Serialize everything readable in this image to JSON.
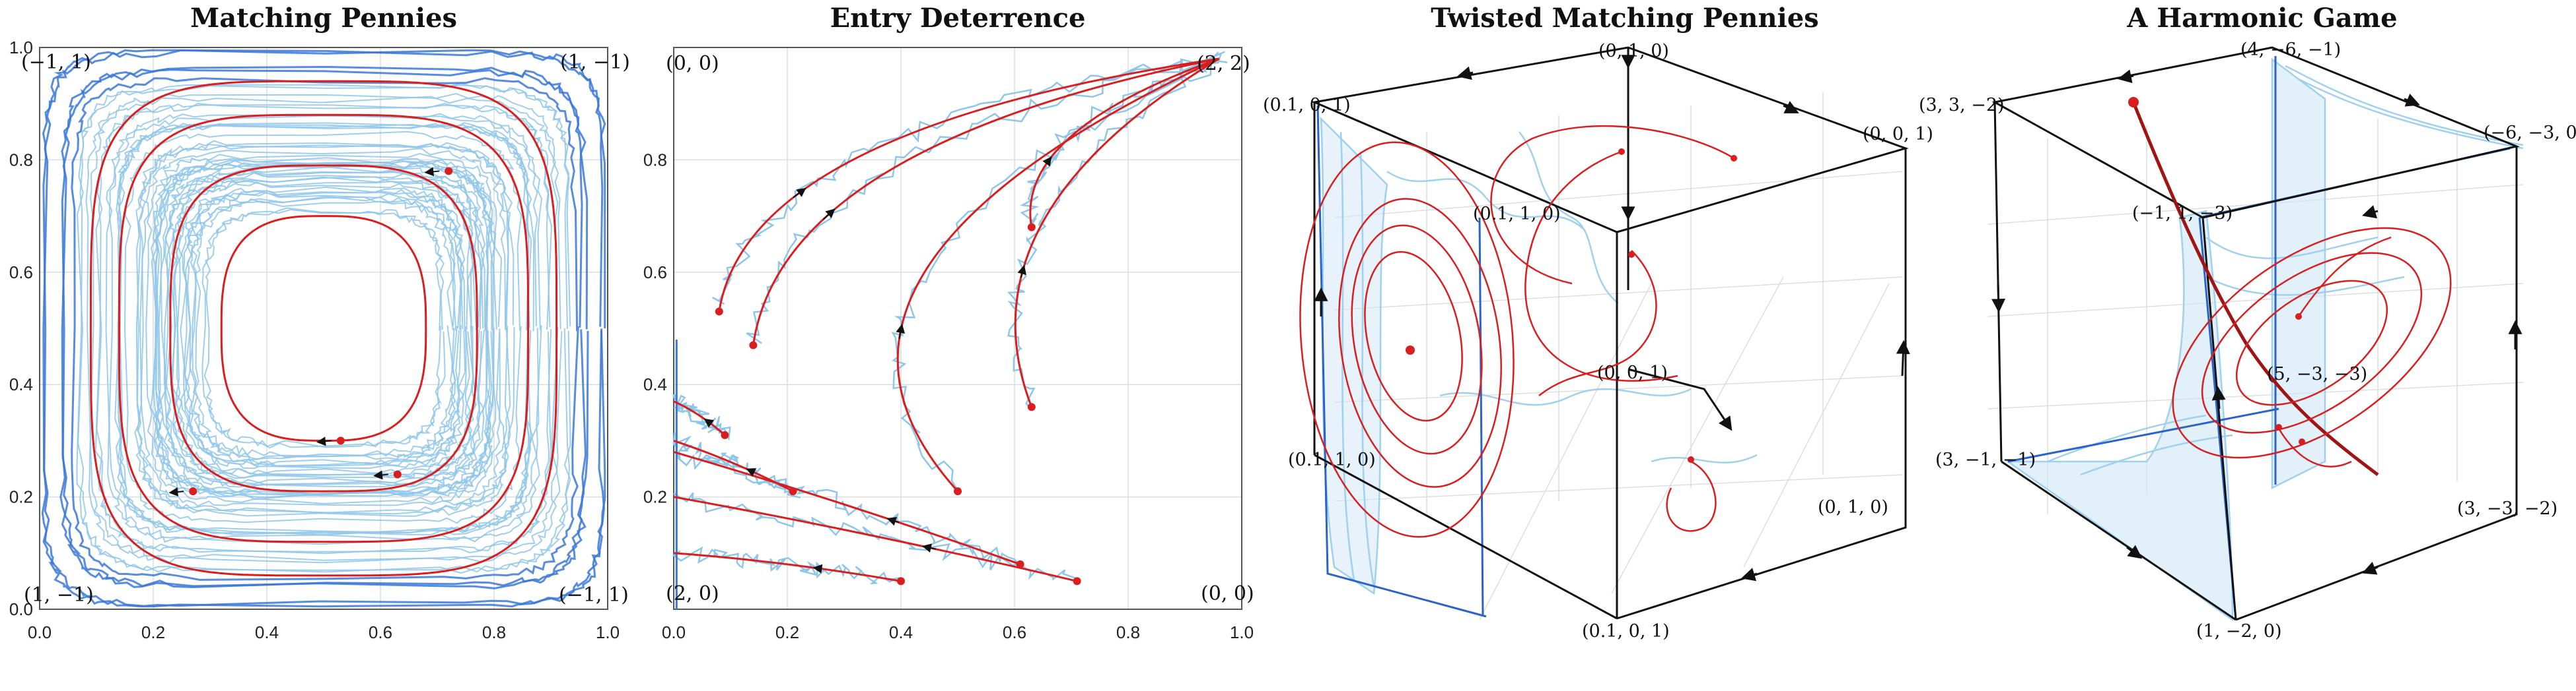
{
  "colors": {
    "red": "#d81e1e",
    "blue": "#3a78d8",
    "lightblue": "#8ec6ea",
    "arrow": "#111111",
    "grid": "#dddddd"
  },
  "chart_data": [
    {
      "type": "line",
      "title": "Matching Pennies",
      "xlim": [
        0,
        1
      ],
      "ylim": [
        0,
        1
      ],
      "xticks": [
        "0.0",
        "0.2",
        "0.4",
        "0.6",
        "0.8",
        "1.0"
      ],
      "yticks": [
        "0.0",
        "0.2",
        "0.4",
        "0.6",
        "0.8",
        "1.0"
      ],
      "corner_labels": {
        "top_left": "(−1, 1)",
        "top_right": "(1, −1)",
        "bottom_left": "(1, −1)",
        "bottom_right": "(−1, 1)"
      },
      "grid": true,
      "series": [
        {
          "center": [
            0.5,
            0.5
          ],
          "radius_x": 0.18,
          "radius_y": 0.2,
          "start": [
            0.53,
            0.3
          ]
        },
        {
          "center": [
            0.5,
            0.5
          ],
          "radius_x": 0.27,
          "radius_y": 0.29,
          "start": [
            0.63,
            0.24
          ]
        },
        {
          "center": [
            0.5,
            0.5
          ],
          "radius_x": 0.36,
          "radius_y": 0.38,
          "start": [
            0.72,
            0.78
          ]
        },
        {
          "center": [
            0.5,
            0.5
          ],
          "radius_x": 0.41,
          "radius_y": 0.44,
          "start": [
            0.27,
            0.21
          ]
        }
      ]
    },
    {
      "type": "line",
      "title": "Entry Deterrence",
      "xlim": [
        0,
        1
      ],
      "ylim": [
        0,
        1
      ],
      "xticks": [
        "0.0",
        "0.2",
        "0.4",
        "0.6",
        "0.8",
        "1.0"
      ],
      "yticks": [
        "0.2",
        "0.4",
        "0.6",
        "0.8"
      ],
      "corner_labels": {
        "top_left": "(0, 0)",
        "top_right": "(2, 2)",
        "bottom_left": "(2, 0)",
        "bottom_right": "(0, 0)"
      },
      "grid": true,
      "series": [
        {
          "start": [
            0.63,
            0.36
          ],
          "end": [
            0.96,
            0.98
          ]
        },
        {
          "start": [
            0.5,
            0.21
          ],
          "end": [
            0.96,
            0.98
          ]
        },
        {
          "start": [
            0.14,
            0.47
          ],
          "end": [
            0.96,
            0.98
          ]
        },
        {
          "start": [
            0.08,
            0.53
          ],
          "end": [
            0.96,
            0.98
          ]
        },
        {
          "start": [
            0.63,
            0.68
          ],
          "end": [
            0.96,
            0.98
          ]
        },
        {
          "start": [
            0.4,
            0.05
          ],
          "end": [
            0.0,
            0.1
          ]
        },
        {
          "start": [
            0.71,
            0.05
          ],
          "end": [
            0.0,
            0.2
          ]
        },
        {
          "start": [
            0.61,
            0.08
          ],
          "end": [
            0.0,
            0.28
          ]
        },
        {
          "start": [
            0.21,
            0.21
          ],
          "end": [
            0.0,
            0.3
          ]
        },
        {
          "start": [
            0.09,
            0.31
          ],
          "end": [
            0.0,
            0.37
          ]
        }
      ]
    },
    {
      "type": "line",
      "title": "Twisted Matching Pennies",
      "vertex_labels": [
        "(0, 1, 0)",
        "(0, 0, 1)",
        "(0.1, 0, 1)",
        "(0.1, 1, 0)",
        "(0, 0, 1)",
        "(0.1, 1, 0)",
        "(0, 1, 0)",
        "(0.1, 0, 1)"
      ]
    },
    {
      "type": "line",
      "title": "A Harmonic Game",
      "vertex_labels": [
        "(4, −6, −1)",
        "(3, 3, −2)",
        "(−6, −3, 0)",
        "(−1, 1, −3)",
        "(5, −3, −3)",
        "(3, −1, −1)",
        "(3, −3, −2)",
        "(1, −2, 0)"
      ]
    }
  ]
}
